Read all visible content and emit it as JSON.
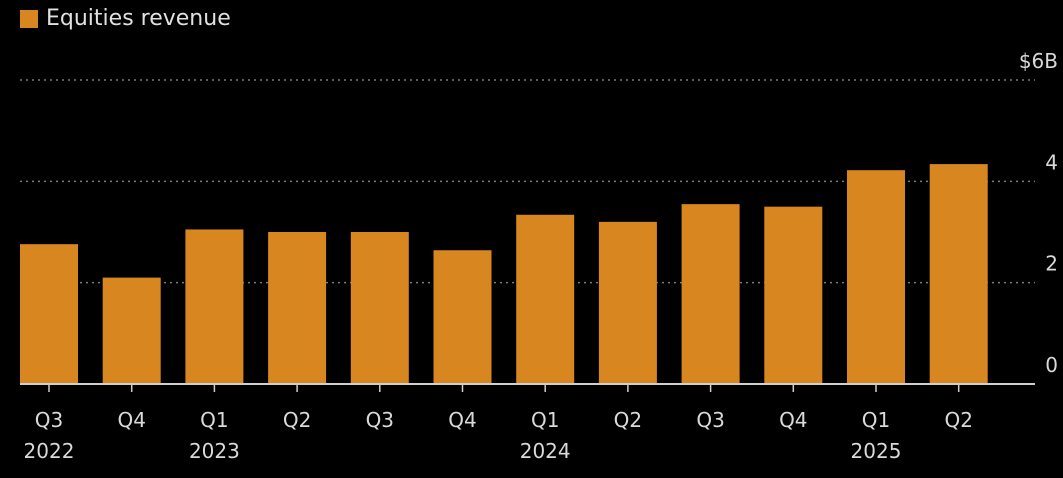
{
  "chart_data": {
    "type": "bar",
    "legend": [
      {
        "label": "Equities revenue",
        "color": "#d8861f"
      }
    ],
    "categories": [
      {
        "quarter": "Q3",
        "year": "2022"
      },
      {
        "quarter": "Q4",
        "year": ""
      },
      {
        "quarter": "Q1",
        "year": "2023"
      },
      {
        "quarter": "Q2",
        "year": ""
      },
      {
        "quarter": "Q3",
        "year": ""
      },
      {
        "quarter": "Q4",
        "year": ""
      },
      {
        "quarter": "Q1",
        "year": "2024"
      },
      {
        "quarter": "Q2",
        "year": ""
      },
      {
        "quarter": "Q3",
        "year": ""
      },
      {
        "quarter": "Q4",
        "year": ""
      },
      {
        "quarter": "Q1",
        "year": "2025"
      },
      {
        "quarter": "Q2",
        "year": ""
      }
    ],
    "series": [
      {
        "name": "Equities revenue",
        "color": "#d8861f",
        "values": [
          2.76,
          2.1,
          3.05,
          3.0,
          3.0,
          2.64,
          3.34,
          3.2,
          3.55,
          3.5,
          4.22,
          4.34
        ]
      }
    ],
    "yticks": [
      {
        "value": 0,
        "label": "0"
      },
      {
        "value": 2,
        "label": "2"
      },
      {
        "value": 4,
        "label": "4"
      },
      {
        "value": 6,
        "label": "$6B"
      }
    ],
    "ylim": [
      0,
      6
    ],
    "y_axis_side": "right",
    "grid": "dotted horizontal",
    "legend_position": "top-left",
    "colors": {
      "background": "#000000",
      "bar": "#d8861f",
      "text": "#d9d9d9",
      "grid": "#7a7a7a",
      "axis": "#cfcfcf"
    }
  }
}
